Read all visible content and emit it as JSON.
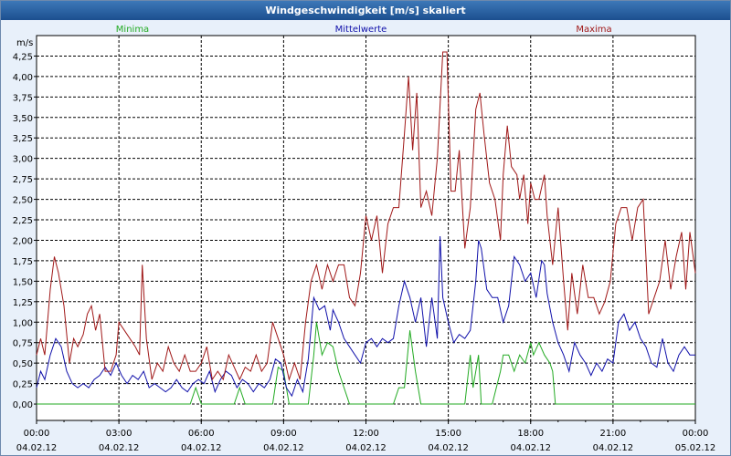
{
  "window": {
    "title": "Windgeschwindigkeit [m/s] skaliert"
  },
  "chart_data": {
    "type": "line",
    "title": "Windgeschwindigkeit [m/s] skaliert",
    "ylabel": "m/s",
    "xlabel": "",
    "ylim": [
      -0.2,
      4.5
    ],
    "xlim_hours": [
      0,
      24
    ],
    "grid": true,
    "legend_position": "top",
    "y_ticks": [
      "0,00",
      "0,25",
      "0,50",
      "0,75",
      "1,00",
      "1,25",
      "1,50",
      "1,75",
      "2,00",
      "2,25",
      "2,50",
      "2,75",
      "3,00",
      "3,25",
      "3,50",
      "3,75",
      "4,00",
      "4,25"
    ],
    "x_ticks": [
      {
        "time": "00:00",
        "date": "04.02.12"
      },
      {
        "time": "03:00",
        "date": "04.02.12"
      },
      {
        "time": "06:00",
        "date": "04.02.12"
      },
      {
        "time": "09:00",
        "date": "04.02.12"
      },
      {
        "time": "12:00",
        "date": "04.02.12"
      },
      {
        "time": "15:00",
        "date": "04.02.12"
      },
      {
        "time": "18:00",
        "date": "04.02.12"
      },
      {
        "time": "21:00",
        "date": "04.02.12"
      },
      {
        "time": "00:00",
        "date": "05.02.12"
      }
    ],
    "series": [
      {
        "name": "Minima",
        "color": "#22aa22",
        "points": [
          [
            0,
            0
          ],
          [
            5.6,
            0
          ],
          [
            5.8,
            0.2
          ],
          [
            6.0,
            0
          ],
          [
            7.2,
            0
          ],
          [
            7.4,
            0.2
          ],
          [
            7.6,
            0
          ],
          [
            8.6,
            0
          ],
          [
            8.8,
            0.45
          ],
          [
            9.0,
            0.4
          ],
          [
            9.2,
            0
          ],
          [
            9.9,
            0
          ],
          [
            10.1,
            0.6
          ],
          [
            10.2,
            1.0
          ],
          [
            10.4,
            0.6
          ],
          [
            10.6,
            0.75
          ],
          [
            10.8,
            0.7
          ],
          [
            11.0,
            0.4
          ],
          [
            11.2,
            0.2
          ],
          [
            11.4,
            0
          ],
          [
            13.0,
            0
          ],
          [
            13.2,
            0.2
          ],
          [
            13.4,
            0.2
          ],
          [
            13.6,
            0.9
          ],
          [
            13.8,
            0.4
          ],
          [
            14.0,
            0
          ],
          [
            15.6,
            0
          ],
          [
            15.8,
            0.6
          ],
          [
            15.9,
            0.2
          ],
          [
            16.1,
            0.6
          ],
          [
            16.2,
            0
          ],
          [
            16.6,
            0
          ],
          [
            16.9,
            0.4
          ],
          [
            17.0,
            0.6
          ],
          [
            17.2,
            0.6
          ],
          [
            17.4,
            0.4
          ],
          [
            17.6,
            0.6
          ],
          [
            17.8,
            0.5
          ],
          [
            18.0,
            0.75
          ],
          [
            18.1,
            0.6
          ],
          [
            18.3,
            0.75
          ],
          [
            18.5,
            0.6
          ],
          [
            18.7,
            0.5
          ],
          [
            18.8,
            0.4
          ],
          [
            18.9,
            0
          ],
          [
            24,
            0
          ]
        ]
      },
      {
        "name": "Mittelwerte",
        "color": "#1010aa",
        "points": [
          [
            0,
            0.2
          ],
          [
            0.15,
            0.4
          ],
          [
            0.3,
            0.3
          ],
          [
            0.5,
            0.6
          ],
          [
            0.7,
            0.8
          ],
          [
            0.9,
            0.7
          ],
          [
            1.1,
            0.4
          ],
          [
            1.3,
            0.25
          ],
          [
            1.5,
            0.2
          ],
          [
            1.7,
            0.25
          ],
          [
            1.9,
            0.2
          ],
          [
            2.1,
            0.3
          ],
          [
            2.3,
            0.35
          ],
          [
            2.5,
            0.45
          ],
          [
            2.7,
            0.35
          ],
          [
            2.9,
            0.5
          ],
          [
            3.1,
            0.35
          ],
          [
            3.3,
            0.25
          ],
          [
            3.5,
            0.35
          ],
          [
            3.7,
            0.3
          ],
          [
            3.9,
            0.4
          ],
          [
            4.1,
            0.2
          ],
          [
            4.3,
            0.25
          ],
          [
            4.5,
            0.2
          ],
          [
            4.7,
            0.15
          ],
          [
            4.9,
            0.2
          ],
          [
            5.1,
            0.3
          ],
          [
            5.3,
            0.2
          ],
          [
            5.5,
            0.15
          ],
          [
            5.7,
            0.25
          ],
          [
            5.9,
            0.3
          ],
          [
            6.1,
            0.25
          ],
          [
            6.3,
            0.4
          ],
          [
            6.5,
            0.15
          ],
          [
            6.7,
            0.3
          ],
          [
            6.9,
            0.4
          ],
          [
            7.1,
            0.35
          ],
          [
            7.3,
            0.2
          ],
          [
            7.5,
            0.3
          ],
          [
            7.7,
            0.25
          ],
          [
            7.9,
            0.15
          ],
          [
            8.1,
            0.25
          ],
          [
            8.3,
            0.2
          ],
          [
            8.5,
            0.3
          ],
          [
            8.7,
            0.55
          ],
          [
            8.9,
            0.5
          ],
          [
            9.1,
            0.2
          ],
          [
            9.3,
            0.1
          ],
          [
            9.5,
            0.3
          ],
          [
            9.7,
            0.15
          ],
          [
            9.9,
            0.55
          ],
          [
            10.1,
            1.3
          ],
          [
            10.3,
            1.15
          ],
          [
            10.5,
            1.2
          ],
          [
            10.7,
            0.9
          ],
          [
            10.8,
            1.15
          ],
          [
            11.0,
            1.0
          ],
          [
            11.2,
            0.8
          ],
          [
            11.4,
            0.7
          ],
          [
            11.6,
            0.6
          ],
          [
            11.8,
            0.5
          ],
          [
            12.0,
            0.75
          ],
          [
            12.2,
            0.8
          ],
          [
            12.4,
            0.7
          ],
          [
            12.6,
            0.8
          ],
          [
            12.8,
            0.75
          ],
          [
            13.0,
            0.8
          ],
          [
            13.2,
            1.2
          ],
          [
            13.4,
            1.5
          ],
          [
            13.6,
            1.3
          ],
          [
            13.8,
            1.0
          ],
          [
            14.0,
            1.3
          ],
          [
            14.2,
            0.7
          ],
          [
            14.4,
            1.3
          ],
          [
            14.6,
            0.8
          ],
          [
            14.7,
            2.05
          ],
          [
            14.8,
            1.3
          ],
          [
            15.0,
            1.0
          ],
          [
            15.2,
            0.75
          ],
          [
            15.4,
            0.85
          ],
          [
            15.6,
            0.8
          ],
          [
            15.8,
            0.9
          ],
          [
            16.0,
            1.5
          ],
          [
            16.1,
            2.0
          ],
          [
            16.2,
            1.9
          ],
          [
            16.4,
            1.4
          ],
          [
            16.6,
            1.3
          ],
          [
            16.8,
            1.3
          ],
          [
            17.0,
            1.0
          ],
          [
            17.2,
            1.2
          ],
          [
            17.4,
            1.8
          ],
          [
            17.6,
            1.7
          ],
          [
            17.8,
            1.5
          ],
          [
            18.0,
            1.6
          ],
          [
            18.2,
            1.3
          ],
          [
            18.4,
            1.75
          ],
          [
            18.5,
            1.7
          ],
          [
            18.6,
            1.35
          ],
          [
            18.8,
            1.0
          ],
          [
            19.0,
            0.75
          ],
          [
            19.2,
            0.6
          ],
          [
            19.4,
            0.4
          ],
          [
            19.6,
            0.75
          ],
          [
            19.8,
            0.6
          ],
          [
            20.0,
            0.5
          ],
          [
            20.2,
            0.35
          ],
          [
            20.4,
            0.5
          ],
          [
            20.6,
            0.4
          ],
          [
            20.8,
            0.55
          ],
          [
            21.0,
            0.5
          ],
          [
            21.2,
            1.0
          ],
          [
            21.4,
            1.1
          ],
          [
            21.6,
            0.9
          ],
          [
            21.8,
            1.0
          ],
          [
            22.0,
            0.8
          ],
          [
            22.2,
            0.7
          ],
          [
            22.4,
            0.5
          ],
          [
            22.6,
            0.45
          ],
          [
            22.8,
            0.8
          ],
          [
            23.0,
            0.5
          ],
          [
            23.2,
            0.4
          ],
          [
            23.4,
            0.6
          ],
          [
            23.6,
            0.7
          ],
          [
            23.8,
            0.6
          ],
          [
            24.0,
            0.6
          ]
        ]
      },
      {
        "name": "Maxima",
        "color": "#a01818",
        "points": [
          [
            0,
            0.6
          ],
          [
            0.15,
            0.8
          ],
          [
            0.3,
            0.6
          ],
          [
            0.5,
            1.4
          ],
          [
            0.65,
            1.8
          ],
          [
            0.8,
            1.6
          ],
          [
            1.0,
            1.2
          ],
          [
            1.2,
            0.5
          ],
          [
            1.35,
            0.8
          ],
          [
            1.5,
            0.7
          ],
          [
            1.7,
            0.85
          ],
          [
            1.85,
            1.1
          ],
          [
            2.0,
            1.2
          ],
          [
            2.15,
            0.9
          ],
          [
            2.3,
            1.1
          ],
          [
            2.5,
            0.4
          ],
          [
            2.7,
            0.4
          ],
          [
            2.9,
            0.6
          ],
          [
            3.0,
            1.0
          ],
          [
            3.2,
            0.9
          ],
          [
            3.4,
            0.8
          ],
          [
            3.6,
            0.7
          ],
          [
            3.75,
            0.6
          ],
          [
            3.85,
            1.7
          ],
          [
            4.0,
            0.8
          ],
          [
            4.2,
            0.3
          ],
          [
            4.4,
            0.5
          ],
          [
            4.6,
            0.4
          ],
          [
            4.8,
            0.7
          ],
          [
            5.0,
            0.5
          ],
          [
            5.2,
            0.4
          ],
          [
            5.4,
            0.6
          ],
          [
            5.6,
            0.4
          ],
          [
            5.8,
            0.4
          ],
          [
            6.0,
            0.5
          ],
          [
            6.2,
            0.7
          ],
          [
            6.4,
            0.3
          ],
          [
            6.6,
            0.4
          ],
          [
            6.8,
            0.3
          ],
          [
            7.0,
            0.6
          ],
          [
            7.2,
            0.45
          ],
          [
            7.4,
            0.3
          ],
          [
            7.6,
            0.45
          ],
          [
            7.8,
            0.4
          ],
          [
            8.0,
            0.6
          ],
          [
            8.2,
            0.4
          ],
          [
            8.4,
            0.5
          ],
          [
            8.6,
            1.0
          ],
          [
            8.8,
            0.8
          ],
          [
            9.0,
            0.6
          ],
          [
            9.2,
            0.3
          ],
          [
            9.4,
            0.5
          ],
          [
            9.6,
            0.3
          ],
          [
            9.8,
            1.0
          ],
          [
            10.0,
            1.5
          ],
          [
            10.2,
            1.7
          ],
          [
            10.4,
            1.4
          ],
          [
            10.6,
            1.7
          ],
          [
            10.8,
            1.5
          ],
          [
            11.0,
            1.7
          ],
          [
            11.2,
            1.7
          ],
          [
            11.4,
            1.3
          ],
          [
            11.6,
            1.2
          ],
          [
            11.8,
            1.6
          ],
          [
            12.0,
            2.3
          ],
          [
            12.2,
            2.0
          ],
          [
            12.4,
            2.3
          ],
          [
            12.6,
            1.6
          ],
          [
            12.8,
            2.2
          ],
          [
            13.0,
            2.4
          ],
          [
            13.2,
            2.4
          ],
          [
            13.4,
            3.3
          ],
          [
            13.55,
            4.0
          ],
          [
            13.7,
            3.1
          ],
          [
            13.85,
            3.8
          ],
          [
            14.0,
            2.4
          ],
          [
            14.2,
            2.6
          ],
          [
            14.4,
            2.3
          ],
          [
            14.6,
            3.0
          ],
          [
            14.8,
            4.3
          ],
          [
            14.95,
            4.3
          ],
          [
            15.1,
            2.6
          ],
          [
            15.25,
            2.6
          ],
          [
            15.4,
            3.1
          ],
          [
            15.6,
            1.9
          ],
          [
            15.8,
            2.4
          ],
          [
            16.0,
            3.6
          ],
          [
            16.15,
            3.8
          ],
          [
            16.3,
            3.3
          ],
          [
            16.5,
            2.7
          ],
          [
            16.7,
            2.5
          ],
          [
            16.9,
            2.0
          ],
          [
            17.0,
            2.8
          ],
          [
            17.15,
            3.4
          ],
          [
            17.3,
            2.9
          ],
          [
            17.5,
            2.8
          ],
          [
            17.6,
            2.5
          ],
          [
            17.75,
            2.8
          ],
          [
            17.9,
            2.2
          ],
          [
            18.0,
            2.7
          ],
          [
            18.15,
            2.5
          ],
          [
            18.3,
            2.5
          ],
          [
            18.5,
            2.8
          ],
          [
            18.6,
            2.3
          ],
          [
            18.8,
            1.7
          ],
          [
            19.0,
            2.4
          ],
          [
            19.2,
            1.5
          ],
          [
            19.35,
            0.9
          ],
          [
            19.5,
            1.6
          ],
          [
            19.7,
            1.1
          ],
          [
            19.9,
            1.7
          ],
          [
            20.1,
            1.3
          ],
          [
            20.3,
            1.3
          ],
          [
            20.5,
            1.1
          ],
          [
            20.7,
            1.25
          ],
          [
            20.9,
            1.5
          ],
          [
            21.1,
            2.2
          ],
          [
            21.3,
            2.4
          ],
          [
            21.5,
            2.4
          ],
          [
            21.7,
            2.0
          ],
          [
            21.9,
            2.4
          ],
          [
            22.1,
            2.5
          ],
          [
            22.3,
            1.1
          ],
          [
            22.5,
            1.3
          ],
          [
            22.7,
            1.5
          ],
          [
            22.9,
            2.0
          ],
          [
            23.1,
            1.4
          ],
          [
            23.3,
            1.8
          ],
          [
            23.5,
            2.1
          ],
          [
            23.65,
            1.4
          ],
          [
            23.8,
            2.1
          ],
          [
            24.0,
            1.6
          ]
        ]
      }
    ]
  }
}
